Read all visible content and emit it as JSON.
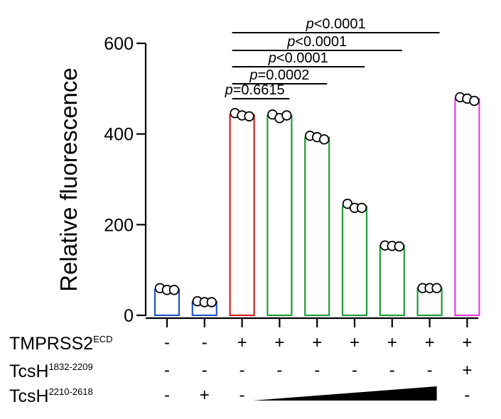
{
  "chart_data": {
    "type": "bar",
    "ylabel": "Relative fluorescence",
    "xlabel": "",
    "title": "",
    "ylim": [
      0,
      600
    ],
    "yticks": [
      0,
      200,
      400,
      600
    ],
    "grid": false,
    "bars": [
      {
        "value": 57,
        "color": "#2255c4",
        "points": [
          60,
          56,
          56
        ]
      },
      {
        "value": 30,
        "color": "#2255c4",
        "points": [
          31,
          29,
          29
        ]
      },
      {
        "value": 442,
        "color": "#d42020",
        "points": [
          446,
          441,
          439
        ]
      },
      {
        "value": 440,
        "color": "#1f9a3a",
        "points": [
          443,
          435,
          441
        ]
      },
      {
        "value": 392,
        "color": "#1f9a3a",
        "points": [
          396,
          393,
          388
        ]
      },
      {
        "value": 240,
        "color": "#1f9a3a",
        "points": [
          246,
          237,
          237
        ]
      },
      {
        "value": 153,
        "color": "#1f9a3a",
        "points": [
          154,
          153,
          152
        ]
      },
      {
        "value": 60,
        "color": "#1f9a3a",
        "points": [
          60,
          60,
          60
        ]
      },
      {
        "value": 478,
        "color": "#e040e0",
        "points": [
          481,
          478,
          473
        ]
      }
    ],
    "comparisons": [
      {
        "from": 3,
        "to": 4,
        "p_italic": "p",
        "p_rest": "=0.6615"
      },
      {
        "from": 3,
        "to": 5,
        "p_italic": "p",
        "p_rest": "=0.0002"
      },
      {
        "from": 3,
        "to": 6,
        "p_italic": "p",
        "p_rest": "<0.0001"
      },
      {
        "from": 3,
        "to": 7,
        "p_italic": "p",
        "p_rest": "<0.0001"
      },
      {
        "from": 3,
        "to": 8,
        "p_italic": "p",
        "p_rest": "<0.0001"
      }
    ],
    "conditions": [
      {
        "name_main": "TMPRSS2",
        "name_sup": "ECD",
        "values": [
          "-",
          "-",
          "+",
          "+",
          "+",
          "+",
          "+",
          "+",
          "+"
        ]
      },
      {
        "name_main": "TcsH",
        "name_sup": "1832-2209",
        "values": [
          "-",
          "-",
          "-",
          "-",
          "-",
          "-",
          "-",
          "-",
          "+"
        ]
      },
      {
        "name_main": "TcsH",
        "name_sup": "2210-2618",
        "values": [
          "-",
          "+",
          "-",
          null,
          null,
          null,
          null,
          null,
          "-"
        ],
        "gradient_from": 3,
        "gradient_to": 8
      }
    ]
  }
}
